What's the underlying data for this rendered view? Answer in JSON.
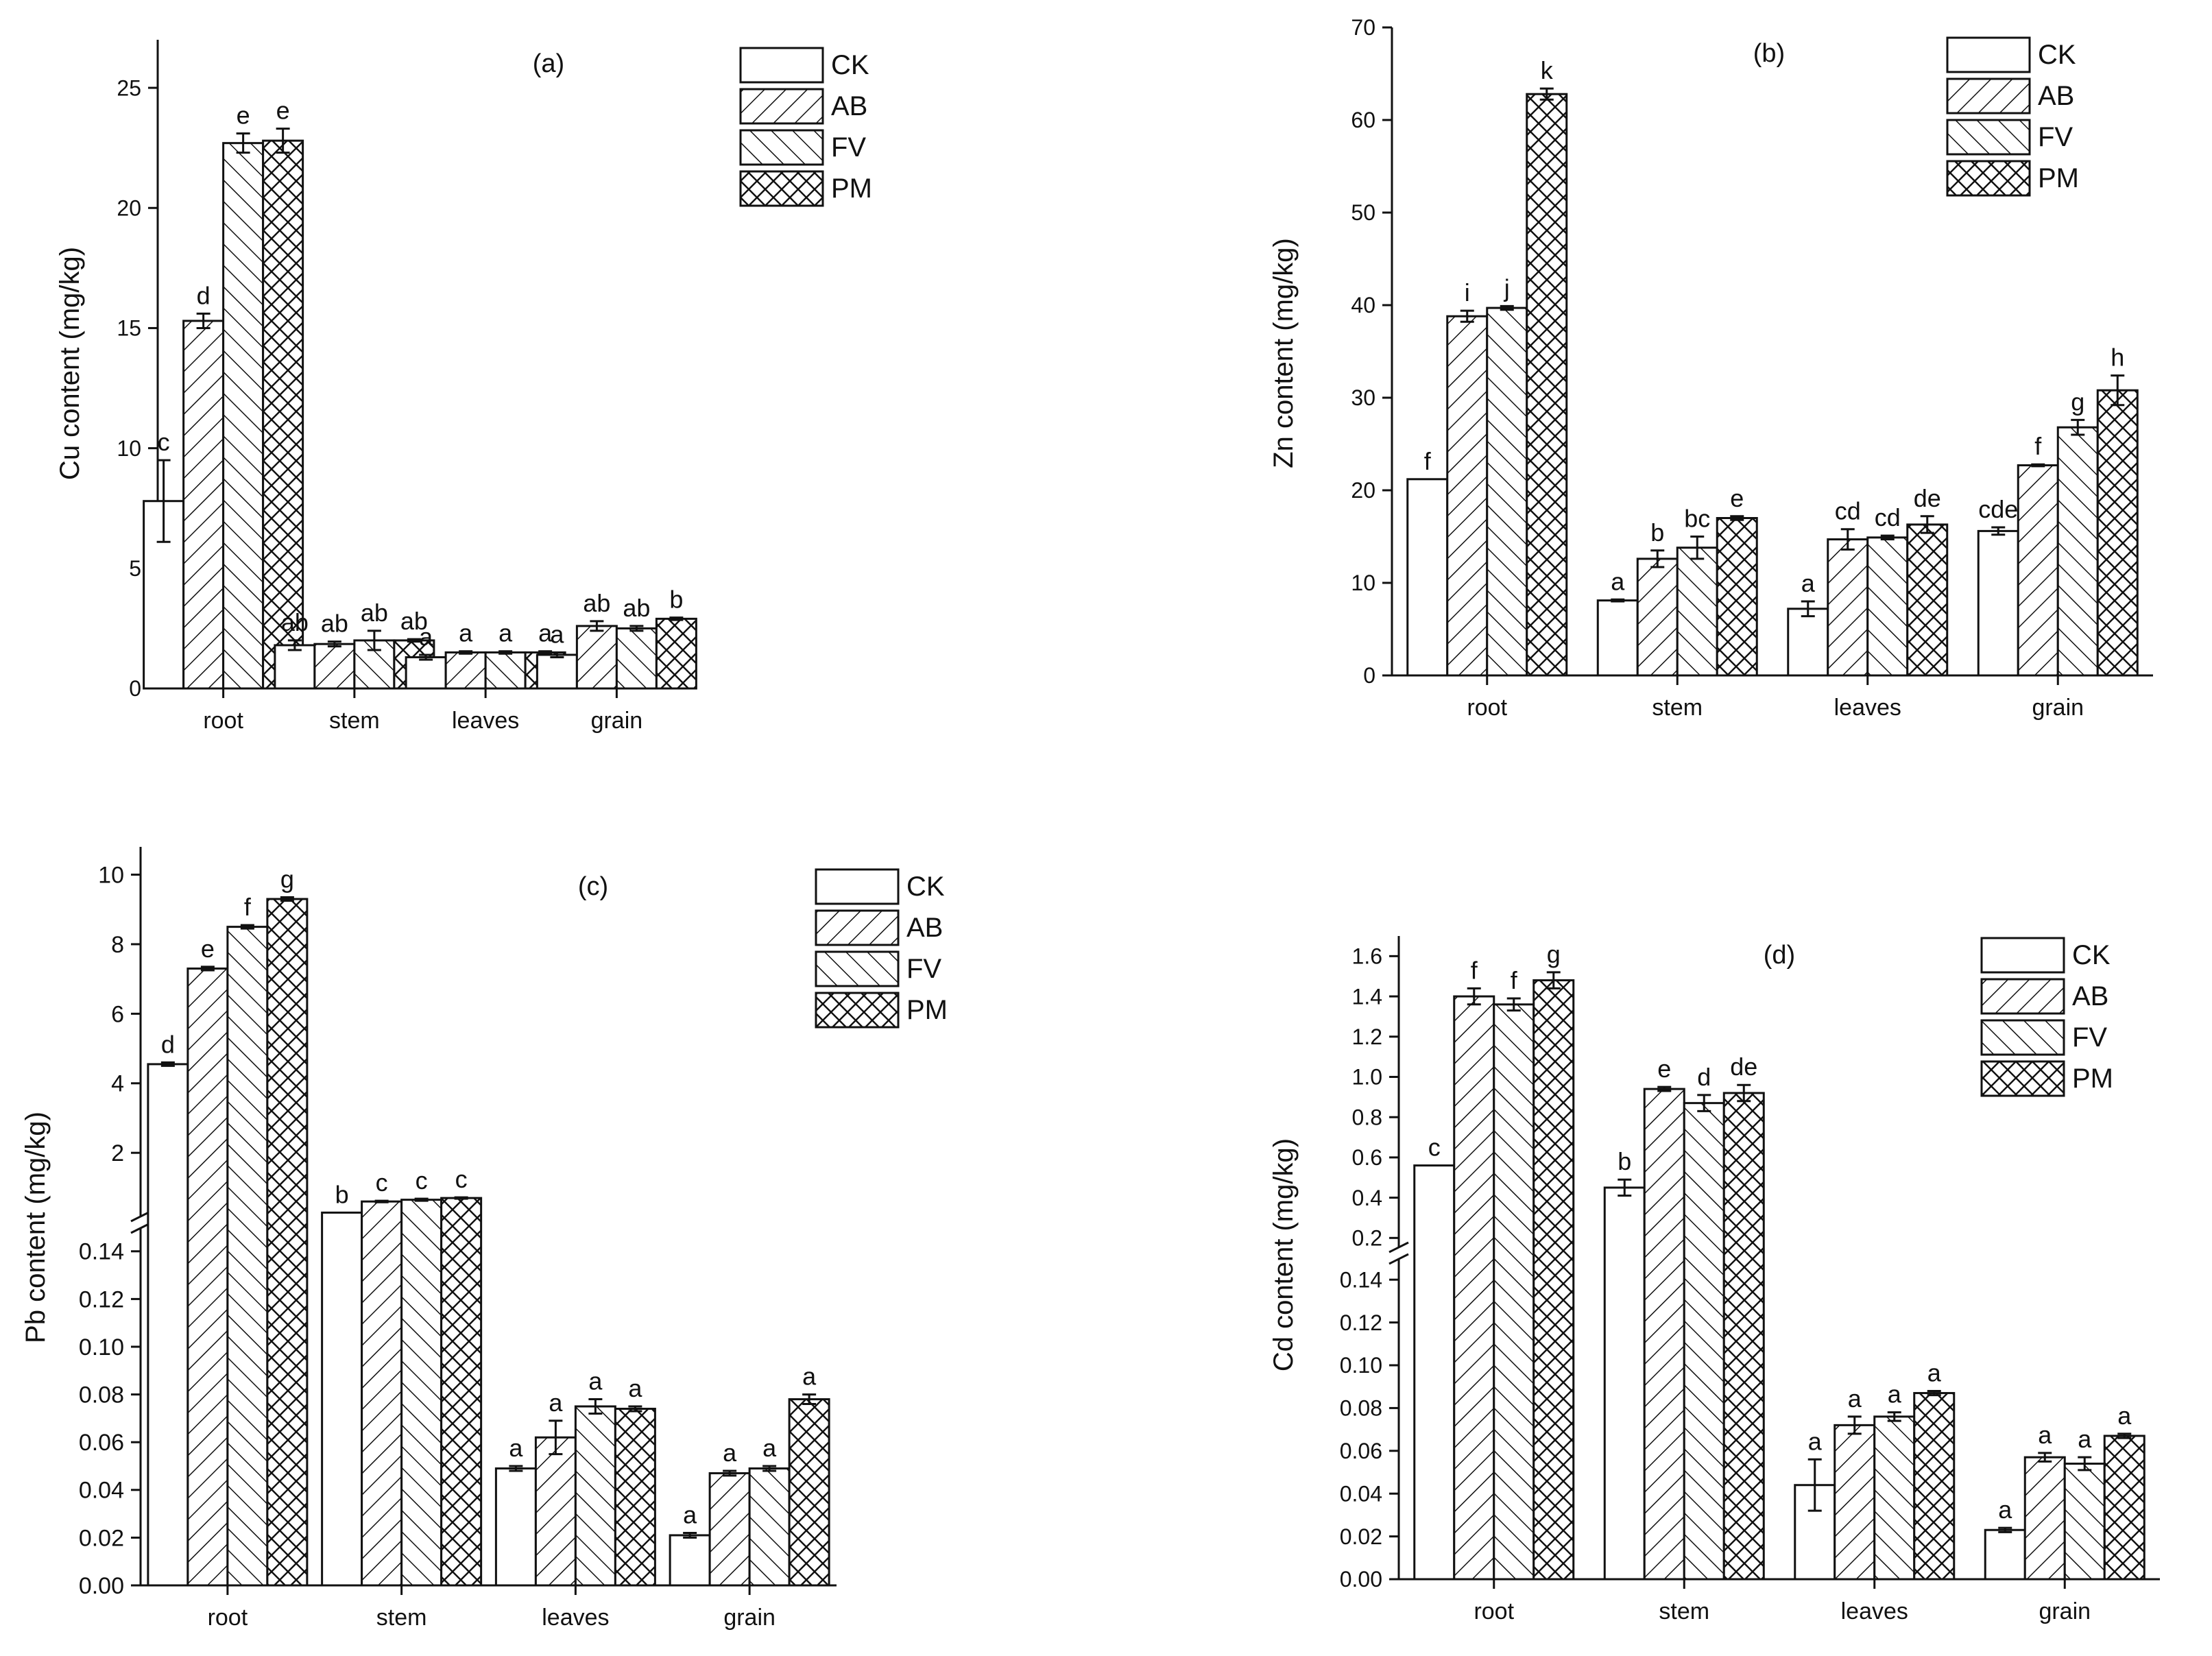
{
  "figure": {
    "groups": [
      "root",
      "stem",
      "leaves",
      "grain"
    ],
    "legend": [
      "CK",
      "AB",
      "FV",
      "PM"
    ]
  },
  "chart_data": [
    {
      "type": "bar",
      "panel": "(a)",
      "title": "(a)",
      "ylabel": "Cu content (mg/kg)",
      "xlabel": "",
      "categories": [
        "root",
        "stem",
        "leaves",
        "grain"
      ],
      "ylim": [
        0,
        27
      ],
      "yticks": [
        0,
        5,
        10,
        15,
        20,
        25
      ],
      "legend_position": "top-right",
      "series": [
        {
          "name": "CK",
          "values": [
            7.8,
            1.8,
            1.3,
            1.4
          ],
          "errors": [
            1.7,
            0.2,
            0.1,
            0.1
          ],
          "letters": [
            "c",
            "ab",
            "a",
            "a"
          ]
        },
        {
          "name": "AB",
          "values": [
            15.3,
            1.85,
            1.5,
            2.6
          ],
          "errors": [
            0.3,
            0.1,
            0.05,
            0.2
          ],
          "letters": [
            "d",
            "ab",
            "a",
            "ab"
          ]
        },
        {
          "name": "FV",
          "values": [
            22.7,
            2.0,
            1.5,
            2.5
          ],
          "errors": [
            0.4,
            0.4,
            0.05,
            0.1
          ],
          "letters": [
            "e",
            "ab",
            "a",
            "ab"
          ]
        },
        {
          "name": "PM",
          "values": [
            22.8,
            2.0,
            1.5,
            2.9
          ],
          "errors": [
            0.5,
            0.05,
            0.05,
            0.05
          ],
          "letters": [
            "e",
            "ab",
            "a",
            "b"
          ]
        }
      ]
    },
    {
      "type": "bar",
      "panel": "(b)",
      "title": "(b)",
      "ylabel": "Zn content (mg/kg)",
      "xlabel": "",
      "categories": [
        "root",
        "stem",
        "leaves",
        "grain"
      ],
      "ylim": [
        0,
        70
      ],
      "yticks": [
        0,
        10,
        20,
        30,
        40,
        50,
        60,
        70
      ],
      "legend_position": "top-right",
      "series": [
        {
          "name": "CK",
          "values": [
            21.2,
            8.1,
            7.2,
            15.6
          ],
          "errors": [
            0.0,
            0.1,
            0.8,
            0.4
          ],
          "letters": [
            "f",
            "a",
            "a",
            "cde"
          ]
        },
        {
          "name": "AB",
          "values": [
            38.8,
            12.6,
            14.7,
            22.7
          ],
          "errors": [
            0.6,
            0.9,
            1.1,
            0.1
          ],
          "letters": [
            "i",
            "b",
            "cd",
            "f"
          ]
        },
        {
          "name": "FV",
          "values": [
            39.7,
            13.8,
            14.9,
            26.8
          ],
          "errors": [
            0.2,
            1.2,
            0.2,
            0.8
          ],
          "letters": [
            "j",
            "bc",
            "cd",
            "g"
          ]
        },
        {
          "name": "PM",
          "values": [
            62.8,
            17.0,
            16.3,
            30.8
          ],
          "errors": [
            0.6,
            0.2,
            0.9,
            1.6
          ],
          "letters": [
            "k",
            "e",
            "de",
            "h"
          ]
        }
      ]
    },
    {
      "type": "bar",
      "panel": "(c)",
      "title": "(c)",
      "ylabel": "Pb content (mg/kg)",
      "xlabel": "",
      "categories": [
        "root",
        "stem",
        "leaves",
        "grain"
      ],
      "broken_axis": {
        "lower_range": [
          0,
          0.15
        ],
        "upper_range": [
          0.15,
          10.8
        ]
      },
      "yticks_lower": [
        0.0,
        0.02,
        0.04,
        0.06,
        0.08,
        0.1,
        0.12,
        0.14
      ],
      "yticks_upper": [
        2,
        4,
        6,
        8,
        10
      ],
      "legend_position": "top-right",
      "series": [
        {
          "name": "CK",
          "values": [
            4.55,
            0.28,
            0.049,
            0.021
          ],
          "errors": [
            0.05,
            0.0,
            0.001,
            0.001
          ],
          "letters": [
            "d",
            "b",
            "a",
            "a"
          ]
        },
        {
          "name": "AB",
          "values": [
            7.3,
            0.6,
            0.062,
            0.047
          ],
          "errors": [
            0.05,
            0.02,
            0.007,
            0.001
          ],
          "letters": [
            "e",
            "c",
            "a",
            "a"
          ]
        },
        {
          "name": "FV",
          "values": [
            8.5,
            0.65,
            0.075,
            0.049
          ],
          "errors": [
            0.05,
            0.03,
            0.003,
            0.001
          ],
          "letters": [
            "f",
            "c",
            "a",
            "a"
          ]
        },
        {
          "name": "PM",
          "values": [
            9.3,
            0.7,
            0.074,
            0.078
          ],
          "errors": [
            0.05,
            0.02,
            0.001,
            0.002
          ],
          "letters": [
            "g",
            "c",
            "a",
            "a"
          ]
        }
      ]
    },
    {
      "type": "bar",
      "panel": "(d)",
      "title": "(d)",
      "ylabel": "Cd content (mg/kg)",
      "xlabel": "",
      "categories": [
        "root",
        "stem",
        "leaves",
        "grain"
      ],
      "broken_axis": {
        "lower_range": [
          0,
          0.15
        ],
        "upper_range": [
          0.15,
          1.7
        ]
      },
      "yticks_lower": [
        0.0,
        0.02,
        0.04,
        0.06,
        0.08,
        0.1,
        0.12,
        0.14
      ],
      "yticks_upper": [
        0.2,
        0.4,
        0.6,
        0.8,
        1.0,
        1.2,
        1.4,
        1.6
      ],
      "legend_position": "top-right",
      "series": [
        {
          "name": "CK",
          "values": [
            0.56,
            0.45,
            0.044,
            0.023
          ],
          "errors": [
            0.0,
            0.04,
            0.012,
            0.001
          ],
          "letters": [
            "c",
            "b",
            "a",
            "a"
          ]
        },
        {
          "name": "AB",
          "values": [
            1.4,
            0.94,
            0.072,
            0.057
          ],
          "errors": [
            0.04,
            0.01,
            0.004,
            0.002
          ],
          "letters": [
            "f",
            "e",
            "a",
            "a"
          ]
        },
        {
          "name": "FV",
          "values": [
            1.36,
            0.87,
            0.076,
            0.054
          ],
          "errors": [
            0.03,
            0.04,
            0.002,
            0.003
          ],
          "letters": [
            "f",
            "d",
            "a",
            "a"
          ]
        },
        {
          "name": "PM",
          "values": [
            1.48,
            0.92,
            0.087,
            0.067
          ],
          "errors": [
            0.04,
            0.04,
            0.001,
            0.001
          ],
          "letters": [
            "g",
            "de",
            "a",
            "a"
          ]
        }
      ]
    }
  ]
}
